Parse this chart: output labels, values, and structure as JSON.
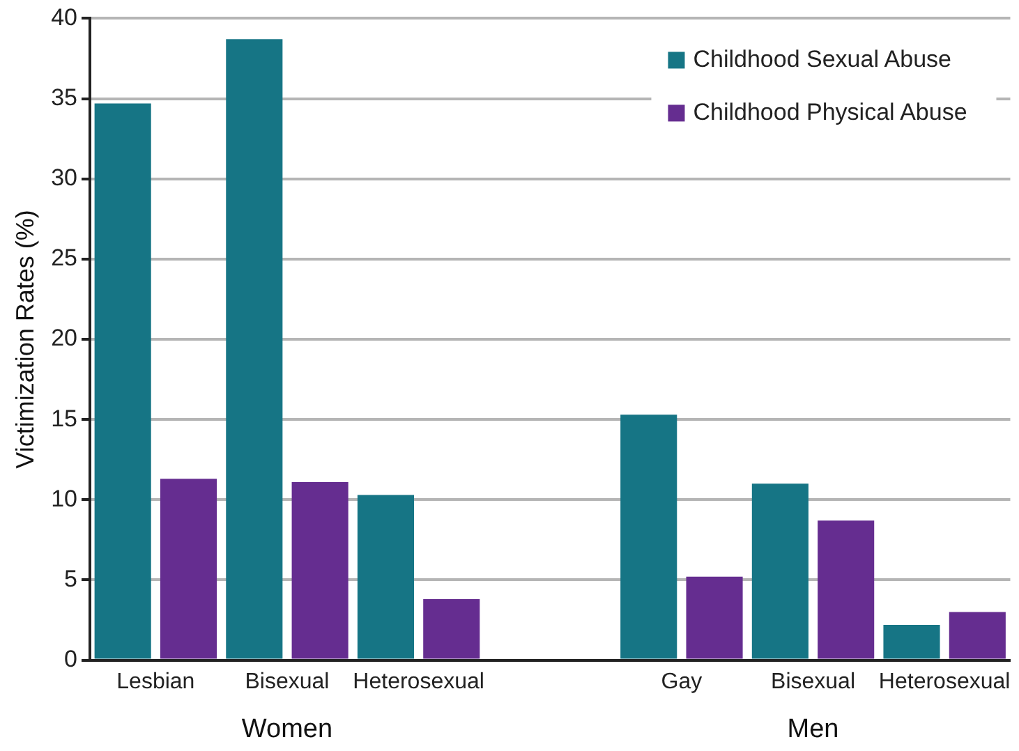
{
  "chart_data": {
    "type": "bar",
    "ylabel": "Victimization Rates (%)",
    "categories": [
      "Lesbian",
      "Bisexual",
      "Heterosexual",
      null,
      "Gay",
      "Bisexual",
      "Heterosexual"
    ],
    "series": [
      {
        "name": "Childhood Sexual Abuse",
        "color": "#167585",
        "values": [
          34.7,
          38.7,
          10.3,
          null,
          15.3,
          11.0,
          2.2
        ]
      },
      {
        "name": "Childhood Physical Abuse",
        "color": "#652d90",
        "values": [
          11.3,
          11.1,
          3.8,
          null,
          5.2,
          8.7,
          3.0
        ]
      }
    ],
    "annotations": [
      "Women",
      "Men"
    ],
    "ylim": [
      0,
      40
    ],
    "yticks": [
      0,
      5,
      10,
      15,
      20,
      25,
      30,
      35,
      40
    ],
    "grid": "y",
    "legend": "top right"
  }
}
